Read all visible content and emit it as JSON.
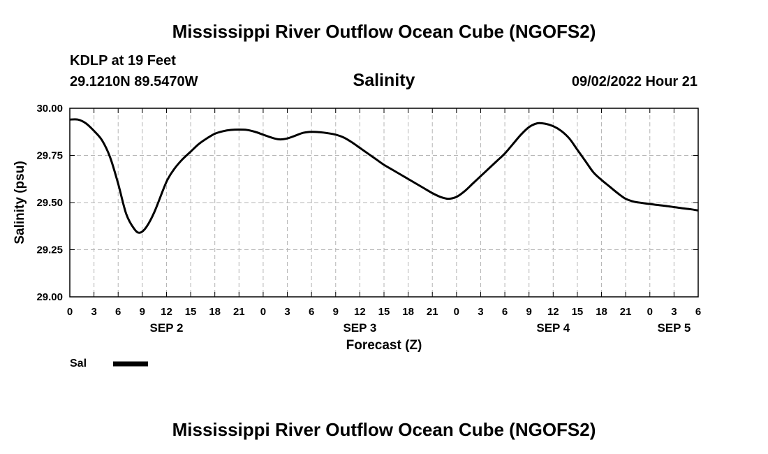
{
  "page": {
    "top_title": "Mississippi River Outflow Ocean Cube (NGOFS2)",
    "bottom_title": "Mississippi River Outflow Ocean Cube (NGOFS2)",
    "station_line": "KDLP at 19 Feet",
    "coords_line": "29.1210N  89.5470W",
    "datetime": "09/02/2022 Hour 21"
  },
  "chart_data": {
    "type": "line",
    "title": "Salinity",
    "xlabel": "Forecast (Z)",
    "ylabel": "Salinity (psu)",
    "ylim": [
      29.0,
      30.0
    ],
    "yticks": [
      "29.00",
      "29.25",
      "29.50",
      "29.75",
      "30.00"
    ],
    "ytick_values": [
      29.0,
      29.25,
      29.5,
      29.75,
      30.0
    ],
    "xlim_hours": [
      0,
      78
    ],
    "xtick_labels": [
      "0",
      "3",
      "6",
      "9",
      "12",
      "15",
      "18",
      "21",
      "0",
      "3",
      "6",
      "9",
      "12",
      "15",
      "18",
      "21",
      "0",
      "3",
      "6",
      "9",
      "12",
      "15",
      "18",
      "21",
      "0",
      "3",
      "6"
    ],
    "day_labels": [
      {
        "label": "SEP 2",
        "hour": 12
      },
      {
        "label": "SEP 3",
        "hour": 36
      },
      {
        "label": "SEP 4",
        "hour": 60
      },
      {
        "label": "SEP 5",
        "hour": 75
      }
    ],
    "grid": true,
    "legend_position": "bottom-left",
    "series": [
      {
        "name": "Sal",
        "color": "#000000",
        "x_hours": [
          0,
          1,
          2,
          3,
          4,
          5,
          6,
          7,
          8,
          8.7,
          9.5,
          10.5,
          12,
          13,
          14,
          15,
          16,
          17,
          18,
          19,
          20,
          21,
          22,
          23,
          24,
          25,
          26,
          27,
          28,
          29,
          30,
          31,
          32,
          33,
          34,
          35,
          36,
          37,
          38,
          39,
          40,
          41,
          42,
          43,
          44,
          45,
          46,
          47,
          48,
          49,
          50,
          51,
          52,
          53,
          54,
          55,
          56,
          57,
          58,
          59,
          60,
          61,
          62,
          63,
          64,
          65,
          66,
          67,
          68,
          69,
          70,
          71,
          72,
          73,
          74,
          75,
          76,
          77,
          78
        ],
        "values": [
          29.94,
          29.94,
          29.92,
          29.88,
          29.83,
          29.74,
          29.6,
          29.44,
          29.36,
          29.34,
          29.37,
          29.45,
          29.61,
          29.68,
          29.73,
          29.77,
          29.81,
          29.84,
          29.865,
          29.878,
          29.885,
          29.887,
          29.885,
          29.875,
          29.86,
          29.845,
          29.835,
          29.84,
          29.855,
          29.87,
          29.875,
          29.873,
          29.868,
          29.86,
          29.845,
          29.82,
          29.79,
          29.76,
          29.73,
          29.7,
          29.675,
          29.65,
          29.625,
          29.6,
          29.575,
          29.55,
          29.53,
          29.52,
          29.53,
          29.56,
          29.6,
          29.64,
          29.68,
          29.72,
          29.76,
          29.81,
          29.86,
          29.9,
          29.92,
          29.918,
          29.905,
          29.88,
          29.84,
          29.78,
          29.72,
          29.66,
          29.62,
          29.585,
          29.55,
          29.52,
          29.505,
          29.498,
          29.492,
          29.487,
          29.482,
          29.476,
          29.47,
          29.465,
          29.458
        ]
      }
    ]
  }
}
